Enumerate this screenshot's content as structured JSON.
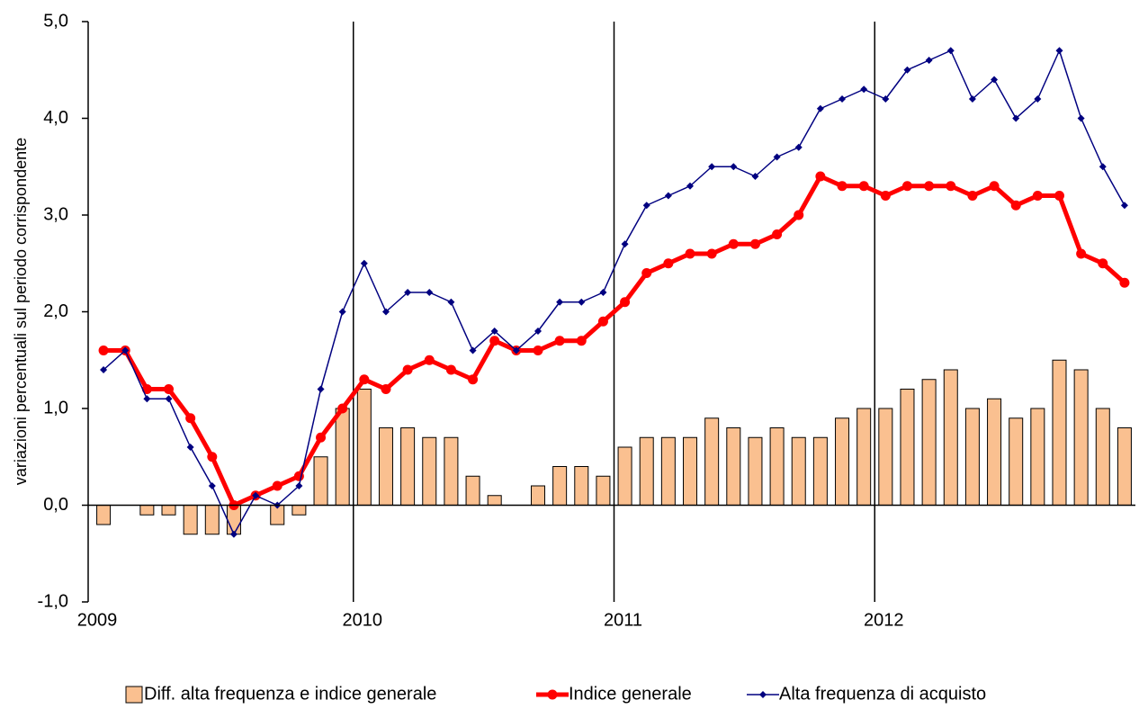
{
  "chart_data": {
    "type": "bar-line",
    "y_label": "variazioni percentuali sul periodo corrispondente",
    "categories": [
      "2009",
      null,
      null,
      null,
      null,
      null,
      null,
      null,
      null,
      null,
      null,
      null,
      "2010",
      null,
      null,
      null,
      null,
      null,
      null,
      null,
      null,
      null,
      null,
      null,
      "2011",
      null,
      null,
      null,
      null,
      null,
      null,
      null,
      null,
      null,
      null,
      null,
      "2012",
      null,
      null,
      null,
      null,
      null,
      null,
      null,
      null,
      null,
      null,
      null
    ],
    "series": [
      {
        "name": "Diff. alta frequenza e indice generale",
        "type": "bar",
        "color": "#fac090",
        "values": [
          -0.2,
          0.0,
          -0.1,
          -0.1,
          -0.3,
          -0.3,
          -0.3,
          0.0,
          -0.2,
          -0.1,
          0.5,
          1.0,
          1.2,
          0.8,
          0.8,
          0.7,
          0.7,
          0.3,
          0.1,
          0.0,
          0.2,
          0.4,
          0.4,
          0.3,
          0.6,
          0.7,
          0.7,
          0.7,
          0.9,
          0.8,
          0.7,
          0.8,
          0.7,
          0.7,
          0.9,
          1.0,
          1.0,
          1.2,
          1.3,
          1.4,
          1.0,
          1.1,
          0.9,
          1.0,
          1.5,
          1.4,
          1.0,
          0.8
        ]
      },
      {
        "name": "Indice generale",
        "type": "line",
        "marker": "circle",
        "color": "#ff0000",
        "values": [
          1.6,
          1.6,
          1.2,
          1.2,
          0.9,
          0.5,
          0.0,
          0.1,
          0.2,
          0.3,
          0.7,
          1.0,
          1.3,
          1.2,
          1.4,
          1.5,
          1.4,
          1.3,
          1.7,
          1.6,
          1.6,
          1.7,
          1.7,
          1.9,
          2.1,
          2.4,
          2.5,
          2.6,
          2.6,
          2.7,
          2.7,
          2.8,
          3.0,
          3.4,
          3.3,
          3.3,
          3.2,
          3.3,
          3.3,
          3.3,
          3.2,
          3.3,
          3.1,
          3.2,
          3.2,
          2.6,
          2.5,
          2.3
        ]
      },
      {
        "name": "Alta frequenza di acquisto",
        "type": "line",
        "marker": "diamond",
        "color": "#000080",
        "values": [
          1.4,
          1.6,
          1.1,
          1.1,
          0.6,
          0.2,
          -0.3,
          0.1,
          0.0,
          0.2,
          1.2,
          2.0,
          2.5,
          2.0,
          2.2,
          2.2,
          2.1,
          1.6,
          1.8,
          1.6,
          1.8,
          2.1,
          2.1,
          2.2,
          2.7,
          3.1,
          3.2,
          3.3,
          3.5,
          3.5,
          3.4,
          3.6,
          3.7,
          4.1,
          4.2,
          4.3,
          4.2,
          4.5,
          4.6,
          4.7,
          4.2,
          4.4,
          4.0,
          4.2,
          4.7,
          4.0,
          3.5,
          3.1
        ]
      }
    ],
    "ylim": [
      -1,
      5
    ],
    "yticks": [
      {
        "value": -1,
        "label": "-1,0"
      },
      {
        "value": 0,
        "label": "0,0"
      },
      {
        "value": 1,
        "label": "1,0"
      },
      {
        "value": 2,
        "label": "2,0"
      },
      {
        "value": 3,
        "label": "3,0"
      },
      {
        "value": 4,
        "label": "4,0"
      },
      {
        "value": 5,
        "label": "5,0"
      }
    ],
    "legend": "bottom"
  }
}
